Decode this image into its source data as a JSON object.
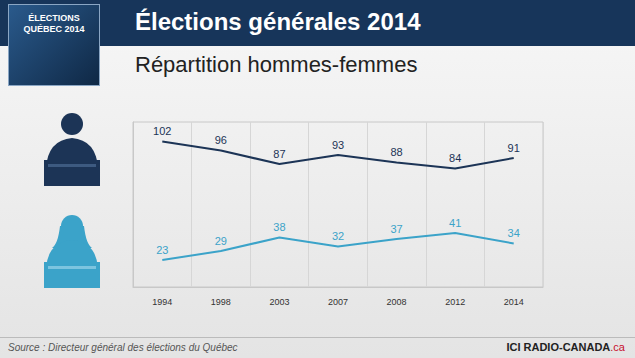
{
  "chart_data": {
    "type": "line",
    "title": "Élections générales 2014",
    "subtitle": "Répartition hommes-femmes",
    "categories": [
      "1994",
      "1998",
      "2003",
      "2007",
      "2008",
      "2012",
      "2014"
    ],
    "series": [
      {
        "color": "#1c3456",
        "values": [
          102,
          96,
          87,
          93,
          88,
          84,
          91
        ]
      },
      {
        "color": "#3ba3c9",
        "values": [
          23,
          29,
          38,
          32,
          37,
          41,
          34
        ]
      }
    ],
    "ylim": [
      5,
      115
    ],
    "grid": true,
    "data_labels": true,
    "tick_labels": "x"
  },
  "header": {
    "logo_text": "ÉLECTIONS QUÉBEC 2014"
  },
  "footer": {
    "source": "Source : Directeur général des élections du Québec",
    "brand": "ICI RADIO-CANADA",
    "brand_suffix": ".ca"
  }
}
